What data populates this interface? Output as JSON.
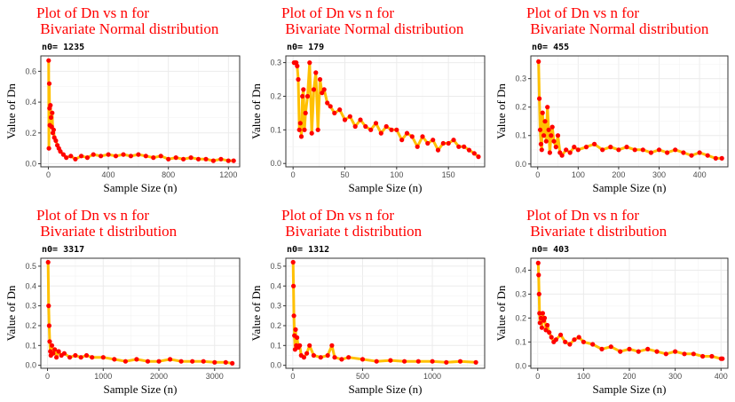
{
  "chart_data": [
    {
      "type": "line",
      "title_line1": "Plot of Dn vs n for",
      "title_line2": " Bivariate Normal distribution",
      "subtitle": "n0= 1235",
      "xlabel": "Sample Size (n)",
      "ylabel": "Value of Dn",
      "xlim": [
        -50,
        1275
      ],
      "ylim": [
        -0.02,
        0.7
      ],
      "xticks": [
        0,
        400,
        800,
        1200
      ],
      "yticks": [
        0.0,
        0.2,
        0.4,
        0.6
      ],
      "ytick_labels": [
        "0.0",
        "0.2",
        "0.4",
        "0.6"
      ],
      "grid": true,
      "line_color": "#ffc000",
      "point_color": "#ff0000",
      "x": [
        2,
        4,
        6,
        8,
        10,
        14,
        18,
        22,
        26,
        30,
        35,
        40,
        50,
        60,
        70,
        80,
        100,
        120,
        150,
        180,
        220,
        260,
        300,
        350,
        400,
        450,
        500,
        550,
        600,
        650,
        700,
        750,
        800,
        850,
        900,
        950,
        1000,
        1050,
        1100,
        1150,
        1200,
        1235
      ],
      "values": [
        0.67,
        0.1,
        0.52,
        0.36,
        0.25,
        0.38,
        0.3,
        0.24,
        0.33,
        0.2,
        0.22,
        0.17,
        0.15,
        0.12,
        0.1,
        0.08,
        0.06,
        0.04,
        0.05,
        0.03,
        0.05,
        0.04,
        0.06,
        0.05,
        0.06,
        0.05,
        0.06,
        0.05,
        0.06,
        0.05,
        0.04,
        0.05,
        0.03,
        0.04,
        0.03,
        0.04,
        0.03,
        0.03,
        0.02,
        0.03,
        0.02,
        0.02
      ]
    },
    {
      "type": "line",
      "title_line1": "Plot of Dn vs n for",
      "title_line2": " Bivariate Normal distribution",
      "subtitle": "n0= 179",
      "xlabel": "Sample Size (n)",
      "ylabel": "Value of Dn",
      "xlim": [
        -7,
        185
      ],
      "ylim": [
        -0.01,
        0.32
      ],
      "xticks": [
        0,
        50,
        100,
        150
      ],
      "yticks": [
        0.0,
        0.1,
        0.2,
        0.3
      ],
      "ytick_labels": [
        "0.0",
        "0.1",
        "0.2",
        "0.3"
      ],
      "grid": true,
      "line_color": "#ffc000",
      "point_color": "#ff0000",
      "x": [
        1,
        2,
        3,
        4,
        5,
        6,
        7,
        8,
        9,
        10,
        11,
        12,
        14,
        16,
        18,
        20,
        22,
        24,
        26,
        28,
        30,
        33,
        36,
        40,
        45,
        50,
        55,
        60,
        65,
        70,
        75,
        80,
        85,
        90,
        95,
        100,
        105,
        110,
        115,
        120,
        125,
        130,
        135,
        140,
        145,
        150,
        155,
        160,
        165,
        170,
        175,
        179
      ],
      "values": [
        0.3,
        0.3,
        0.3,
        0.29,
        0.25,
        0.1,
        0.12,
        0.08,
        0.2,
        0.22,
        0.1,
        0.15,
        0.2,
        0.3,
        0.09,
        0.22,
        0.27,
        0.1,
        0.25,
        0.21,
        0.22,
        0.18,
        0.17,
        0.15,
        0.16,
        0.13,
        0.14,
        0.11,
        0.13,
        0.11,
        0.1,
        0.12,
        0.09,
        0.11,
        0.1,
        0.1,
        0.07,
        0.09,
        0.08,
        0.05,
        0.08,
        0.06,
        0.07,
        0.04,
        0.06,
        0.06,
        0.07,
        0.05,
        0.05,
        0.04,
        0.03,
        0.02
      ]
    },
    {
      "type": "line",
      "title_line1": "Plot of Dn vs n for",
      "title_line2": " Bivariate Normal distribution",
      "subtitle": "n0= 455",
      "xlabel": "Sample Size (n)",
      "ylabel": "Value of Dn",
      "xlim": [
        -17,
        470
      ],
      "ylim": [
        -0.01,
        0.38
      ],
      "xticks": [
        0,
        100,
        200,
        300,
        400
      ],
      "yticks": [
        0.0,
        0.1,
        0.2,
        0.3
      ],
      "ytick_labels": [
        "0.0",
        "0.1",
        "0.2",
        "0.3"
      ],
      "grid": true,
      "line_color": "#ffc000",
      "point_color": "#ff0000",
      "x": [
        2,
        4,
        6,
        8,
        10,
        12,
        15,
        18,
        21,
        24,
        27,
        30,
        33,
        36,
        40,
        45,
        50,
        55,
        60,
        70,
        80,
        90,
        100,
        120,
        140,
        160,
        180,
        200,
        220,
        240,
        260,
        280,
        300,
        320,
        340,
        360,
        380,
        400,
        420,
        440,
        455
      ],
      "values": [
        0.36,
        0.23,
        0.12,
        0.07,
        0.05,
        0.18,
        0.1,
        0.15,
        0.08,
        0.2,
        0.12,
        0.04,
        0.1,
        0.13,
        0.08,
        0.06,
        0.1,
        0.04,
        0.03,
        0.05,
        0.04,
        0.06,
        0.05,
        0.06,
        0.07,
        0.05,
        0.06,
        0.05,
        0.06,
        0.05,
        0.05,
        0.04,
        0.05,
        0.04,
        0.05,
        0.04,
        0.03,
        0.04,
        0.03,
        0.02,
        0.02
      ]
    },
    {
      "type": "line",
      "title_line1": "Plot of Dn vs n for",
      "title_line2": " Bivariate t distribution",
      "subtitle": "n0= 3317",
      "xlabel": "Sample Size (n)",
      "ylabel": "Value of Dn",
      "xlim": [
        -120,
        3450
      ],
      "ylim": [
        -0.015,
        0.54
      ],
      "xticks": [
        0,
        1000,
        2000,
        3000
      ],
      "yticks": [
        0.0,
        0.1,
        0.2,
        0.3,
        0.4,
        0.5
      ],
      "ytick_labels": [
        "0.0",
        "0.1",
        "0.2",
        "0.3",
        "0.4",
        "0.5"
      ],
      "grid": true,
      "line_color": "#ffc000",
      "point_color": "#ff0000",
      "x": [
        10,
        20,
        30,
        40,
        50,
        60,
        80,
        100,
        130,
        160,
        200,
        250,
        300,
        400,
        500,
        600,
        700,
        800,
        1000,
        1200,
        1400,
        1600,
        1800,
        2000,
        2200,
        2400,
        2600,
        2800,
        3000,
        3200,
        3317
      ],
      "values": [
        0.52,
        0.3,
        0.2,
        0.12,
        0.07,
        0.05,
        0.1,
        0.06,
        0.08,
        0.04,
        0.07,
        0.05,
        0.06,
        0.04,
        0.05,
        0.04,
        0.05,
        0.04,
        0.04,
        0.03,
        0.02,
        0.03,
        0.02,
        0.02,
        0.03,
        0.02,
        0.02,
        0.02,
        0.015,
        0.015,
        0.01
      ]
    },
    {
      "type": "line",
      "title_line1": "Plot of Dn vs n for",
      "title_line2": " Bivariate t distribution",
      "subtitle": "n0= 1312",
      "xlabel": "Sample Size (n)",
      "ylabel": "Value of Dn",
      "xlim": [
        -50,
        1375
      ],
      "ylim": [
        -0.015,
        0.54
      ],
      "xticks": [
        0,
        500,
        1000
      ],
      "yticks": [
        0.0,
        0.1,
        0.2,
        0.3,
        0.4,
        0.5
      ],
      "ytick_labels": [
        "0.0",
        "0.1",
        "0.2",
        "0.3",
        "0.4",
        "0.5"
      ],
      "grid": true,
      "line_color": "#ffc000",
      "point_color": "#ff0000",
      "x": [
        2,
        5,
        8,
        12,
        16,
        20,
        25,
        30,
        40,
        50,
        60,
        80,
        100,
        120,
        150,
        200,
        250,
        280,
        300,
        350,
        400,
        500,
        600,
        700,
        800,
        900,
        1000,
        1100,
        1200,
        1312
      ],
      "values": [
        0.52,
        0.4,
        0.25,
        0.15,
        0.08,
        0.18,
        0.1,
        0.14,
        0.09,
        0.1,
        0.05,
        0.04,
        0.06,
        0.1,
        0.05,
        0.04,
        0.05,
        0.1,
        0.04,
        0.03,
        0.04,
        0.03,
        0.02,
        0.025,
        0.02,
        0.02,
        0.02,
        0.015,
        0.02,
        0.015
      ]
    },
    {
      "type": "line",
      "title_line1": "Plot of Dn vs n for",
      "title_line2": " Bivariate t distribution",
      "subtitle": "n0= 403",
      "xlabel": "Sample Size (n)",
      "ylabel": "Value of Dn",
      "xlim": [
        -15,
        415
      ],
      "ylim": [
        -0.01,
        0.45
      ],
      "xticks": [
        0,
        100,
        200,
        300,
        400
      ],
      "yticks": [
        0.0,
        0.1,
        0.2,
        0.3,
        0.4
      ],
      "ytick_labels": [
        "0.0",
        "0.1",
        "0.2",
        "0.3",
        "0.4"
      ],
      "grid": true,
      "line_color": "#ffc000",
      "point_color": "#ff0000",
      "x": [
        1,
        2,
        3,
        4,
        5,
        7,
        9,
        11,
        13,
        15,
        18,
        21,
        25,
        30,
        35,
        40,
        50,
        60,
        70,
        80,
        90,
        100,
        120,
        140,
        160,
        180,
        200,
        220,
        240,
        260,
        280,
        300,
        320,
        340,
        360,
        380,
        400,
        403
      ],
      "values": [
        0.43,
        0.38,
        0.3,
        0.22,
        0.18,
        0.2,
        0.16,
        0.22,
        0.19,
        0.2,
        0.15,
        0.17,
        0.14,
        0.12,
        0.1,
        0.11,
        0.13,
        0.1,
        0.09,
        0.11,
        0.12,
        0.1,
        0.09,
        0.07,
        0.08,
        0.06,
        0.07,
        0.06,
        0.07,
        0.06,
        0.05,
        0.06,
        0.05,
        0.05,
        0.04,
        0.04,
        0.03,
        0.03
      ]
    }
  ]
}
